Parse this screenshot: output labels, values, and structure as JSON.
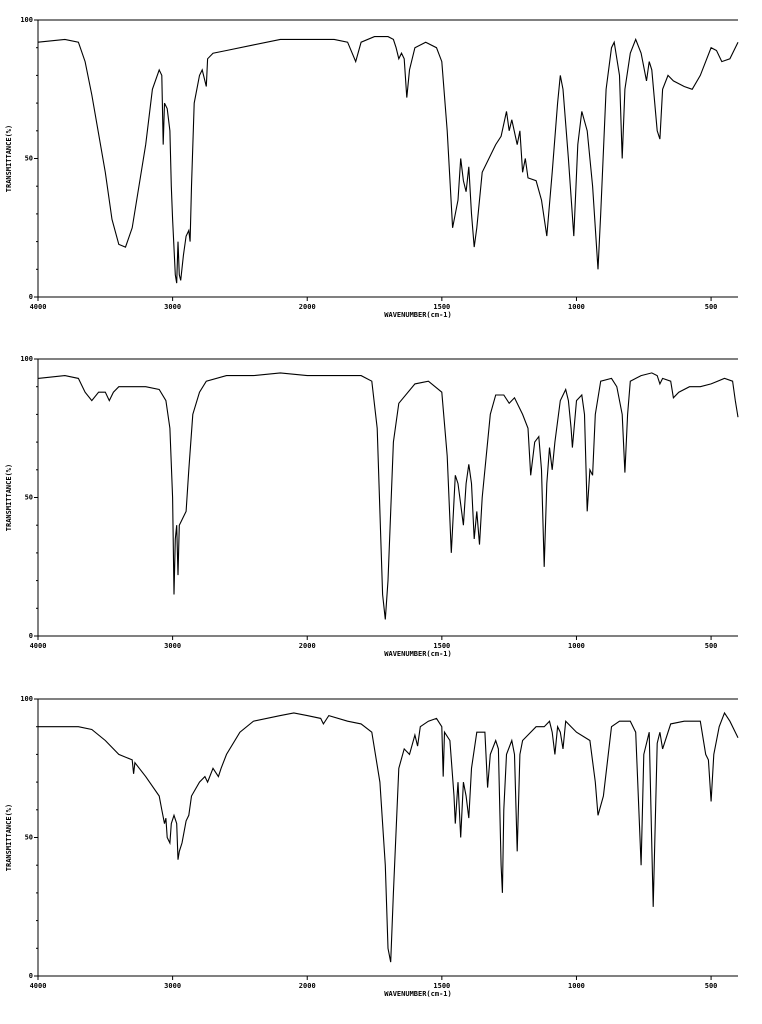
{
  "chart_data": [
    {
      "type": "line",
      "xlabel": "WAVENUMBER(cm-1)",
      "ylabel": "TRANSMITTANCE(%)",
      "color": "#000000",
      "xlim": [
        4000,
        400
      ],
      "ylim": [
        0,
        100
      ],
      "x_scale_change": {
        "at": 2000,
        "factor": 2
      },
      "xticks": [
        4000,
        3000,
        2000,
        1500,
        1000,
        500
      ],
      "yticks": [
        0,
        50,
        100
      ],
      "x": [
        4000,
        3800,
        3700,
        3650,
        3600,
        3500,
        3450,
        3400,
        3350,
        3300,
        3200,
        3150,
        3100,
        3080,
        3070,
        3060,
        3040,
        3020,
        3010,
        3000,
        2980,
        2970,
        2960,
        2950,
        2940,
        2920,
        2900,
        2880,
        2870,
        2860,
        2840,
        2800,
        2780,
        2750,
        2740,
        2700,
        2600,
        2400,
        2200,
        2000,
        1900,
        1850,
        1820,
        1800,
        1750,
        1700,
        1680,
        1670,
        1660,
        1650,
        1640,
        1630,
        1620,
        1600,
        1560,
        1520,
        1500,
        1480,
        1460,
        1440,
        1430,
        1420,
        1410,
        1400,
        1390,
        1380,
        1370,
        1350,
        1300,
        1280,
        1260,
        1250,
        1240,
        1220,
        1210,
        1200,
        1190,
        1180,
        1150,
        1130,
        1110,
        1090,
        1070,
        1060,
        1050,
        1030,
        1010,
        995,
        980,
        960,
        940,
        920,
        910,
        890,
        870,
        860,
        840,
        830,
        820,
        800,
        780,
        760,
        740,
        730,
        720,
        700,
        690,
        680,
        660,
        640,
        600,
        570,
        540,
        500,
        480,
        460,
        430,
        400
      ],
      "values": [
        92,
        93,
        92,
        85,
        73,
        45,
        28,
        19,
        18,
        25,
        55,
        75,
        82,
        80,
        55,
        70,
        68,
        60,
        40,
        28,
        8,
        5,
        20,
        8,
        6,
        15,
        22,
        24,
        20,
        40,
        70,
        80,
        82,
        76,
        86,
        88,
        89,
        91,
        93,
        93,
        93,
        92,
        85,
        92,
        94,
        94,
        93,
        90,
        86,
        88,
        86,
        72,
        82,
        90,
        92,
        90,
        85,
        60,
        25,
        35,
        50,
        42,
        38,
        47,
        30,
        18,
        25,
        45,
        55,
        58,
        67,
        60,
        64,
        55,
        60,
        45,
        50,
        43,
        42,
        35,
        22,
        45,
        70,
        80,
        75,
        50,
        22,
        55,
        67,
        60,
        40,
        10,
        30,
        75,
        90,
        92,
        80,
        50,
        75,
        88,
        93,
        88,
        78,
        85,
        82,
        60,
        57,
        75,
        80,
        78,
        76,
        75,
        80,
        90,
        89,
        85,
        86,
        92
      ]
    },
    {
      "type": "line",
      "xlabel": "WAVENUMBER(cm-1)",
      "ylabel": "TRANSMITTANCE(%)",
      "color": "#000000",
      "xlim": [
        4000,
        400
      ],
      "ylim": [
        0,
        100
      ],
      "x_scale_change": {
        "at": 2000,
        "factor": 2
      },
      "xticks": [
        4000,
        3000,
        2000,
        1500,
        1000,
        500
      ],
      "yticks": [
        0,
        50,
        100
      ],
      "x": [
        4000,
        3800,
        3700,
        3650,
        3600,
        3550,
        3500,
        3470,
        3440,
        3400,
        3200,
        3100,
        3050,
        3020,
        3000,
        2990,
        2980,
        2970,
        2960,
        2950,
        2930,
        2900,
        2880,
        2850,
        2800,
        2750,
        2600,
        2400,
        2200,
        2000,
        1800,
        1760,
        1740,
        1720,
        1710,
        1700,
        1680,
        1660,
        1600,
        1550,
        1500,
        1480,
        1465,
        1450,
        1440,
        1420,
        1410,
        1400,
        1390,
        1380,
        1370,
        1360,
        1350,
        1320,
        1300,
        1270,
        1250,
        1230,
        1200,
        1180,
        1170,
        1155,
        1140,
        1130,
        1120,
        1110,
        1100,
        1090,
        1080,
        1060,
        1040,
        1030,
        1020,
        1015,
        1000,
        980,
        970,
        960,
        950,
        940,
        930,
        910,
        870,
        850,
        830,
        820,
        810,
        800,
        760,
        720,
        700,
        690,
        680,
        650,
        640,
        620,
        580,
        540,
        500,
        450,
        420,
        410,
        400
      ],
      "values": [
        93,
        94,
        93,
        88,
        85,
        88,
        88,
        85,
        88,
        90,
        90,
        89,
        85,
        75,
        50,
        15,
        35,
        40,
        22,
        40,
        42,
        45,
        60,
        80,
        88,
        92,
        94,
        94,
        95,
        94,
        94,
        92,
        75,
        15,
        6,
        20,
        70,
        84,
        91,
        92,
        88,
        65,
        30,
        58,
        55,
        40,
        55,
        62,
        55,
        35,
        45,
        33,
        50,
        80,
        87,
        87,
        84,
        86,
        80,
        75,
        58,
        70,
        72,
        60,
        25,
        55,
        68,
        60,
        70,
        85,
        89,
        85,
        75,
        68,
        85,
        87,
        80,
        45,
        60,
        58,
        80,
        92,
        93,
        90,
        80,
        59,
        80,
        92,
        94,
        95,
        94,
        91,
        93,
        92,
        86,
        88,
        90,
        90,
        91,
        93,
        92,
        85,
        79
      ]
    },
    {
      "type": "line",
      "xlabel": "WAVENUMBER(cm-1)",
      "ylabel": "TRANSMITTANCE(%)",
      "color": "#000000",
      "xlim": [
        4000,
        400
      ],
      "ylim": [
        0,
        100
      ],
      "x_scale_change": {
        "at": 2000,
        "factor": 2
      },
      "xticks": [
        4000,
        3000,
        2000,
        1500,
        1000,
        500
      ],
      "yticks": [
        0,
        50,
        100
      ],
      "x": [
        4000,
        3800,
        3700,
        3600,
        3500,
        3400,
        3300,
        3290,
        3280,
        3200,
        3100,
        3080,
        3060,
        3050,
        3040,
        3020,
        3010,
        2990,
        2970,
        2960,
        2950,
        2930,
        2900,
        2880,
        2860,
        2800,
        2760,
        2740,
        2700,
        2660,
        2640,
        2600,
        2500,
        2400,
        2200,
        2100,
        2000,
        1950,
        1940,
        1920,
        1850,
        1800,
        1760,
        1730,
        1710,
        1700,
        1690,
        1680,
        1660,
        1640,
        1620,
        1600,
        1590,
        1580,
        1550,
        1520,
        1500,
        1495,
        1490,
        1470,
        1455,
        1450,
        1440,
        1430,
        1420,
        1410,
        1400,
        1390,
        1370,
        1340,
        1330,
        1320,
        1300,
        1290,
        1280,
        1275,
        1270,
        1260,
        1240,
        1230,
        1220,
        1210,
        1200,
        1180,
        1150,
        1120,
        1100,
        1090,
        1080,
        1070,
        1060,
        1050,
        1040,
        1020,
        1000,
        950,
        930,
        920,
        900,
        870,
        840,
        800,
        780,
        760,
        750,
        730,
        715,
        700,
        690,
        680,
        650,
        600,
        540,
        520,
        510,
        500,
        490,
        470,
        450,
        430,
        410,
        400
      ],
      "values": [
        90,
        90,
        90,
        89,
        85,
        80,
        78,
        73,
        77,
        72,
        65,
        60,
        55,
        57,
        50,
        48,
        55,
        58,
        55,
        42,
        45,
        48,
        56,
        58,
        65,
        70,
        72,
        70,
        75,
        72,
        75,
        80,
        88,
        92,
        94,
        95,
        94,
        93,
        91,
        94,
        92,
        91,
        88,
        70,
        40,
        10,
        5,
        30,
        75,
        82,
        80,
        87,
        83,
        90,
        92,
        93,
        90,
        72,
        88,
        85,
        65,
        55,
        70,
        50,
        70,
        65,
        57,
        75,
        88,
        88,
        68,
        80,
        85,
        82,
        40,
        30,
        60,
        80,
        85,
        80,
        45,
        80,
        85,
        87,
        90,
        90,
        92,
        88,
        80,
        90,
        88,
        82,
        92,
        90,
        88,
        85,
        70,
        58,
        65,
        90,
        92,
        92,
        88,
        40,
        80,
        88,
        25,
        84,
        88,
        82,
        91,
        92,
        92,
        80,
        78,
        63,
        80,
        90,
        95,
        92,
        88,
        86
      ]
    }
  ]
}
